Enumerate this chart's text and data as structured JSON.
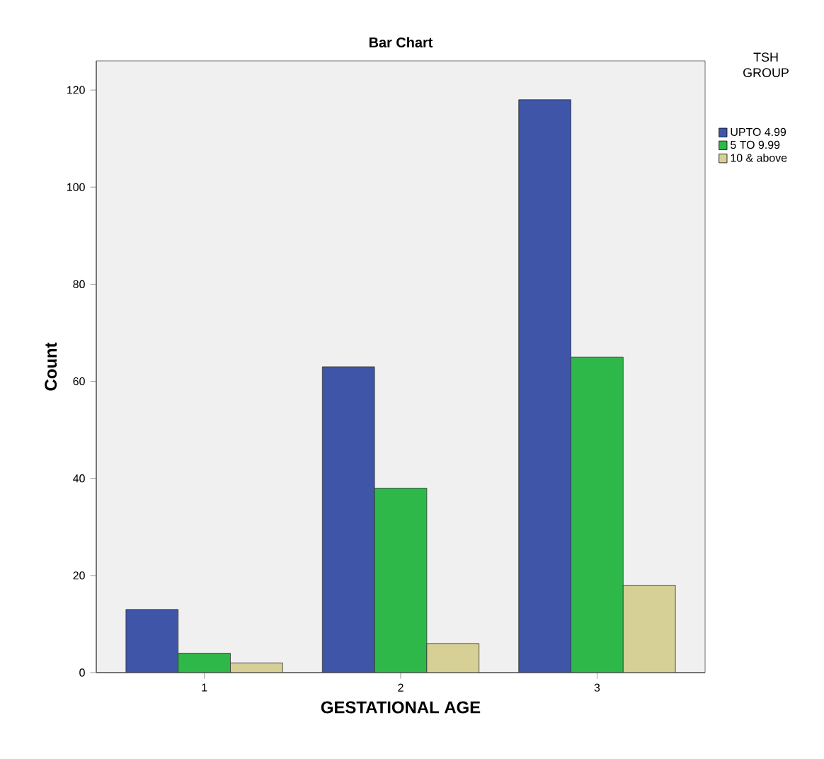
{
  "chart_data": {
    "type": "bar",
    "title": "Bar Chart",
    "xlabel": "GESTATIONAL AGE",
    "ylabel": "Count",
    "legend_title": "TSH GROUP",
    "legend": "top right",
    "categories": [
      "1",
      "2",
      "3"
    ],
    "series": [
      {
        "name": "UPTO 4.99",
        "color": "#3e55a8",
        "values": [
          13,
          63,
          118
        ]
      },
      {
        "name": "5 TO  9.99",
        "color": "#2fb84a",
        "values": [
          4,
          38,
          65
        ]
      },
      {
        "name": "10 & above",
        "color": "#d6d096",
        "values": [
          2,
          6,
          18
        ]
      }
    ],
    "ylim": [
      0,
      126
    ],
    "yticks": [
      0,
      20,
      40,
      60,
      80,
      100,
      120
    ]
  }
}
